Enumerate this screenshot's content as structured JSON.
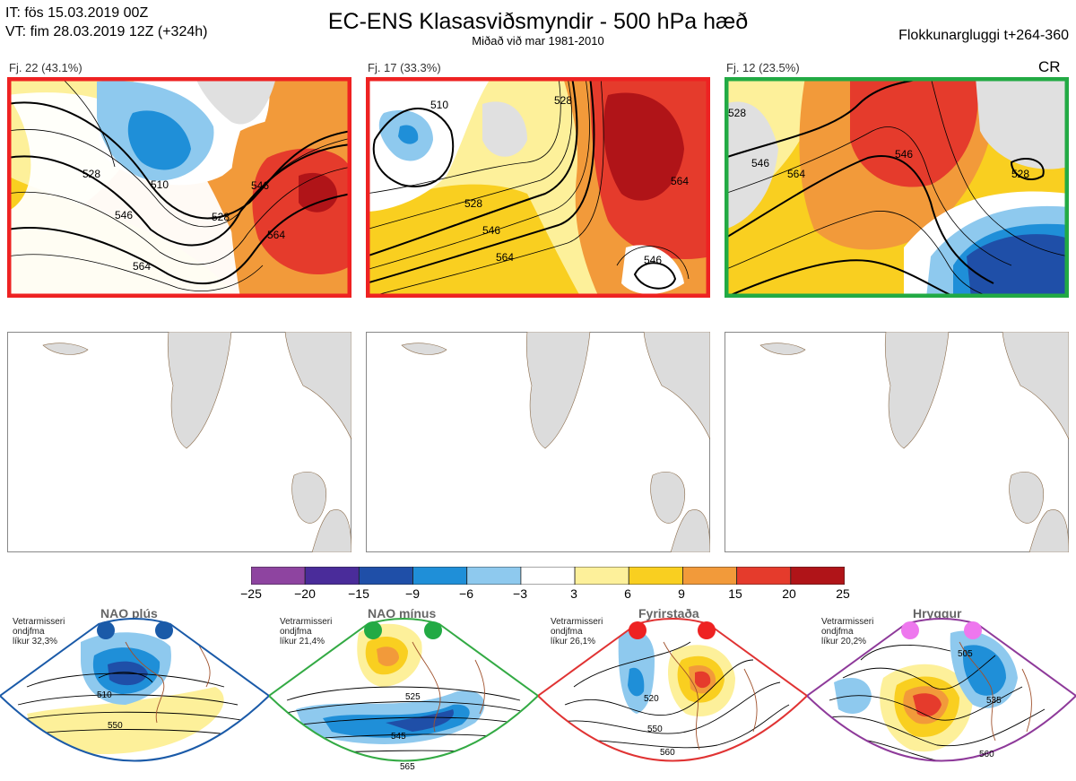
{
  "header": {
    "it_line": "IT: fös 15.03.2019 00Z",
    "vt_line": "VT: fim 28.03.2019 12Z  (+324h)",
    "title": "EC-ENS Klasasviðsmyndir - 500 hPa hæð",
    "subtitle": "Miðað við mar 1981-2010",
    "window_label": "Flokkunargluggi t+264-360"
  },
  "cr_label": "CR",
  "panels": [
    {
      "caption": "Fj. 22 (43.1%)",
      "border_color": "#ee2222",
      "contours": [
        "510",
        "528",
        "546",
        "564",
        "528",
        "546",
        "564"
      ]
    },
    {
      "caption": "Fj. 17 (33.3%)",
      "border_color": "#ee2222",
      "contours": [
        "510",
        "528",
        "546",
        "564",
        "546",
        "528",
        "564"
      ]
    },
    {
      "caption": "Fj. 12 (23.5%)",
      "border_color": "#22aa44",
      "contours": [
        "528",
        "546",
        "564",
        "528",
        "546"
      ]
    }
  ],
  "colorbar": {
    "ticks": [
      "−25",
      "−20",
      "−15",
      "−9",
      "−6",
      "−3",
      "3",
      "6",
      "9",
      "15",
      "20",
      "25"
    ],
    "colors": [
      "#8e44a0",
      "#4a2c9a",
      "#1f4fa8",
      "#1f8fd8",
      "#8ec9ee",
      "#ffffff",
      "#fdf09a",
      "#f9cf20",
      "#f29a3a",
      "#e53b2c",
      "#b01418"
    ]
  },
  "regimes": [
    {
      "name": "NAO plús",
      "prob_lines": [
        "Vetrarmisseri",
        "ondjfma",
        "líkur 32,3%"
      ],
      "border_color": "#1a5aa8",
      "dot_color": "#1a5aa8",
      "contours": [
        "510",
        "550"
      ]
    },
    {
      "name": "NAO mínus",
      "prob_lines": [
        "Vetrarmisseri",
        "ondjfma",
        "líkur 21,4%"
      ],
      "border_color": "#33aa44",
      "dot_color": "#22aa44",
      "contours": [
        "525",
        "545",
        "565"
      ]
    },
    {
      "name": "Fyrirstaða",
      "prob_lines": [
        "Vetrarmisseri",
        "ondjfma",
        "líkur 26,1%"
      ],
      "border_color": "#e03333",
      "dot_color": "#ee2222",
      "contours": [
        "520",
        "550",
        "560"
      ]
    },
    {
      "name": "Hryggur",
      "prob_lines": [
        "Vetrarmisseri",
        "ondjfma",
        "líkur 20,2%"
      ],
      "border_color": "#8e3a9a",
      "dot_color": "#ee77ee",
      "contours": [
        "505",
        "535",
        "560"
      ]
    }
  ]
}
